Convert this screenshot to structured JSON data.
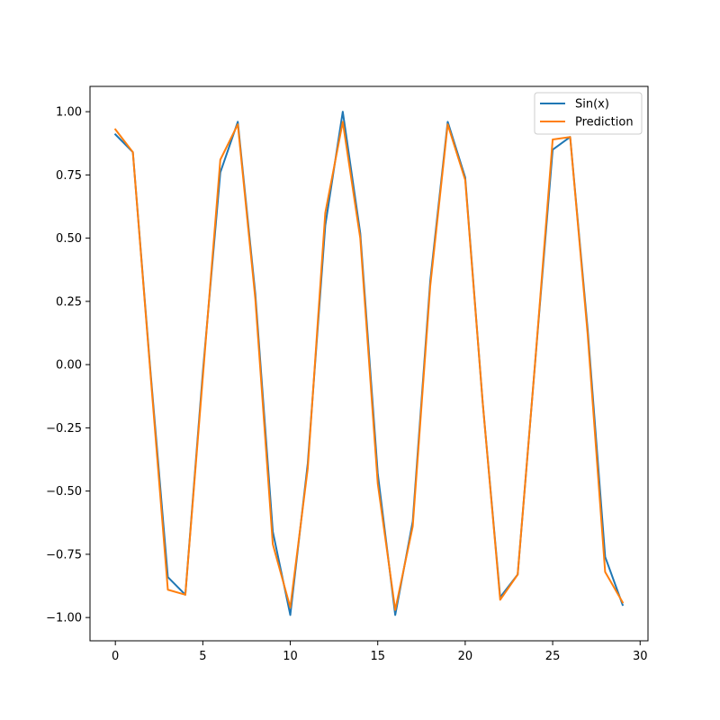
{
  "chart_data": {
    "type": "line",
    "title": "",
    "xlabel": "",
    "ylabel": "",
    "xlim": [
      -1.45,
      30.45
    ],
    "ylim": [
      -1.092,
      1.1
    ],
    "x_ticks": [
      0,
      5,
      10,
      15,
      20,
      25,
      30
    ],
    "y_ticks": [
      -1.0,
      -0.75,
      -0.5,
      -0.25,
      0.0,
      0.25,
      0.5,
      0.75,
      1.0
    ],
    "x_tick_labels": [
      "0",
      "5",
      "10",
      "15",
      "20",
      "25",
      "30"
    ],
    "y_tick_labels": [
      "−1.00",
      "−0.75",
      "−0.50",
      "−0.25",
      "0.00",
      "0.25",
      "0.50",
      "0.75",
      "1.00"
    ],
    "grid": false,
    "legend_position": "top-right",
    "x": [
      0,
      1,
      2,
      3,
      4,
      5,
      6,
      7,
      8,
      9,
      10,
      11,
      12,
      13,
      14,
      15,
      16,
      17,
      18,
      19,
      20,
      21,
      22,
      23,
      24,
      25,
      26,
      27,
      28,
      29
    ],
    "series": [
      {
        "name": "Sin(x)",
        "color": "#1f77b4",
        "values": [
          0.91,
          0.84,
          -0.02,
          -0.84,
          -0.91,
          -0.03,
          0.76,
          0.96,
          0.28,
          -0.66,
          -0.99,
          -0.39,
          0.55,
          1.0,
          0.52,
          -0.43,
          -0.99,
          -0.62,
          0.33,
          0.96,
          0.74,
          -0.15,
          -0.92,
          -0.83,
          0.01,
          0.85,
          0.9,
          0.14,
          -0.76,
          -0.95
        ]
      },
      {
        "name": "Prediction",
        "color": "#ff7f0e",
        "values": [
          0.93,
          0.84,
          -0.03,
          -0.89,
          -0.91,
          -0.05,
          0.81,
          0.95,
          0.26,
          -0.71,
          -0.96,
          -0.41,
          0.6,
          0.96,
          0.5,
          -0.47,
          -0.97,
          -0.64,
          0.31,
          0.95,
          0.73,
          -0.15,
          -0.93,
          -0.83,
          0.01,
          0.89,
          0.9,
          0.12,
          -0.82,
          -0.94
        ]
      }
    ]
  }
}
